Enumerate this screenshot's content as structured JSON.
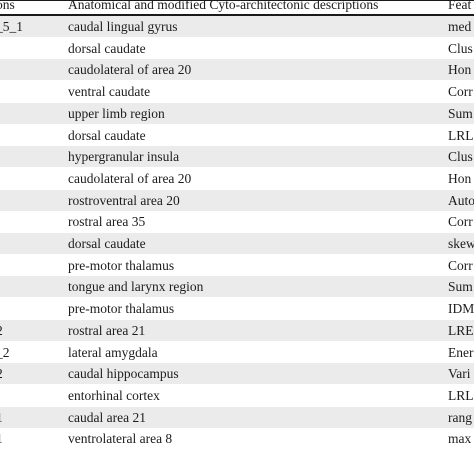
{
  "table": {
    "headers": [
      "ons",
      "Anatomical and modified Cyto-architectonic descriptions",
      "Feat"
    ],
    "rows": [
      [
        "_5_1",
        "caudal lingual gyrus",
        "med"
      ],
      [
        "",
        "dorsal caudate",
        "Clus"
      ],
      [
        "",
        "caudolateral of area 20",
        "Hon"
      ],
      [
        "",
        "ventral caudate",
        "Corr"
      ],
      [
        "",
        "upper limb region",
        "Sum"
      ],
      [
        "",
        "dorsal caudate",
        "LRL"
      ],
      [
        "",
        "hypergranular insula",
        "Clus"
      ],
      [
        "",
        "caudolateral of area 20",
        "Hon"
      ],
      [
        "",
        "rostroventral area 20",
        "Auto"
      ],
      [
        "",
        "rostral area 35",
        "Corr"
      ],
      [
        "",
        "dorsal caudate",
        "skew"
      ],
      [
        "",
        "pre-motor thalamus",
        "Corr"
      ],
      [
        "",
        "tongue and larynx region",
        "Sum"
      ],
      [
        "",
        "pre-motor thalamus",
        "IDM"
      ],
      [
        "2",
        "rostral area 21",
        "LRE"
      ],
      [
        "_2",
        "lateral amygdala",
        "Ener"
      ],
      [
        "2",
        "caudal hippocampus",
        "Vari"
      ],
      [
        "-",
        "entorhinal cortex",
        "LRL"
      ],
      [
        "1",
        "caudal area 21",
        "rang"
      ],
      [
        "1",
        "ventrolateral area 8",
        "max"
      ]
    ]
  }
}
